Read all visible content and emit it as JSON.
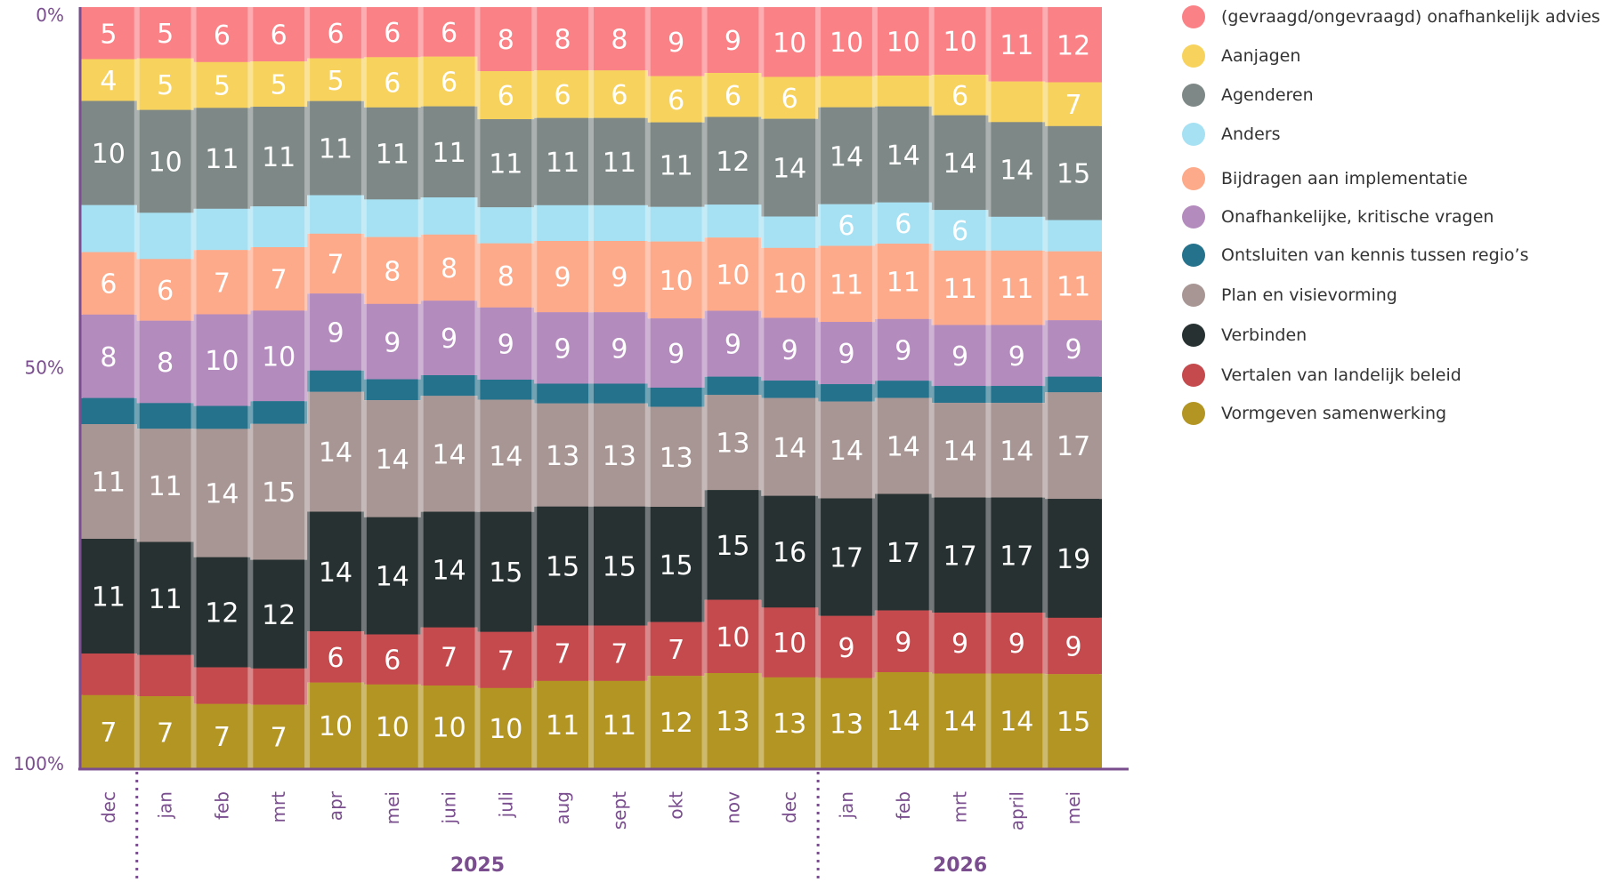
{
  "chart_data": {
    "type": "stacked-area",
    "orientation": "top-down-percentage",
    "y_ticks": [
      "0%",
      "50%",
      "100%"
    ],
    "x_labels": [
      "dec",
      "jan",
      "feb",
      "mrt",
      "apr",
      "mei",
      "juni",
      "juli",
      "aug",
      "sept",
      "okt",
      "nov",
      "dec",
      "jan",
      "feb",
      "mrt",
      "april",
      "mei"
    ],
    "year_labels": [
      {
        "label": "2025",
        "start_index": 1,
        "end_index": 12
      },
      {
        "label": "2026",
        "start_index": 13,
        "end_index": 17
      }
    ],
    "year_dividers_after_index": [
      0,
      12
    ],
    "series": [
      {
        "name": "(gevraagd/ongevraagd) onafhankelijk advies",
        "color": "#FA8287",
        "values": [
          5,
          5,
          6,
          6,
          6,
          6,
          6,
          8,
          8,
          8,
          9,
          9,
          10,
          10,
          10,
          10,
          11,
          12
        ],
        "labels": [
          "5",
          "5",
          "6",
          "6",
          "6",
          "6",
          "6",
          "8",
          "8",
          "8",
          "9",
          "9",
          "10",
          "10",
          "10",
          "10",
          "11",
          "12"
        ]
      },
      {
        "name": "Aanjagen",
        "color": "#F7D35E",
        "values": [
          4,
          5,
          5,
          5,
          5,
          6,
          6,
          6,
          6,
          6,
          6,
          6,
          6,
          4.5,
          4.5,
          6,
          6,
          7
        ],
        "labels": [
          "4",
          "5",
          "5",
          "5",
          "5",
          "6",
          "6",
          "6",
          "6",
          "6",
          "6",
          "6",
          "6",
          "",
          "",
          "6",
          "",
          "7"
        ]
      },
      {
        "name": "Agenderen",
        "color": "#7E8886",
        "values": [
          10,
          10,
          11,
          11,
          11,
          11,
          11,
          11,
          11,
          11,
          11,
          12,
          14,
          14,
          14,
          14,
          14,
          15
        ],
        "labels": [
          "10",
          "10",
          "11",
          "11",
          "11",
          "11",
          "11",
          "11",
          "11",
          "11",
          "11",
          "12",
          "14",
          "14",
          "14",
          "14",
          "14",
          "15"
        ]
      },
      {
        "name": "Anders",
        "color": "#A6E1F3",
        "values": [
          4.5,
          4.5,
          4.5,
          4.5,
          4.5,
          4.5,
          4.5,
          4.5,
          4.5,
          4.5,
          4.5,
          4.5,
          4.5,
          6,
          6,
          6,
          5,
          5
        ],
        "labels": [
          "",
          "",
          "",
          "",
          "",
          "",
          "",
          "",
          "",
          "",
          "",
          "",
          "",
          "6",
          "6",
          "6",
          "",
          ""
        ]
      },
      {
        "name": "Bijdragen aan implementatie",
        "color": "#FDAA8A",
        "values": [
          6,
          6,
          7,
          7,
          7,
          8,
          8,
          8,
          9,
          9,
          10,
          10,
          10,
          11,
          11,
          11,
          11,
          11
        ],
        "labels": [
          "6",
          "6",
          "7",
          "7",
          "7",
          "8",
          "8",
          "8",
          "9",
          "9",
          "10",
          "10",
          "10",
          "11",
          "11",
          "11",
          "11",
          "11"
        ]
      },
      {
        "name": "Onafhankelijke, kritische vragen",
        "color": "#B48BBD",
        "values": [
          8,
          8,
          10,
          10,
          9,
          9,
          9,
          9,
          9,
          9,
          9,
          9,
          9,
          9,
          9,
          9,
          9,
          9
        ],
        "labels": [
          "8",
          "8",
          "10",
          "10",
          "9",
          "9",
          "9",
          "9",
          "9",
          "9",
          "9",
          "9",
          "9",
          "9",
          "9",
          "9",
          "9",
          "9"
        ]
      },
      {
        "name": "Ontsluiten van kennis tussen regio’s",
        "color": "#25728C",
        "values": [
          2.5,
          2.5,
          2.5,
          2.5,
          2.5,
          2.5,
          2.5,
          2.5,
          2.5,
          2.5,
          2.5,
          2.5,
          2.5,
          2.5,
          2.5,
          2.5,
          2.5,
          2.5
        ],
        "labels": [
          "",
          "",
          "",
          "",
          "",
          "",
          "",
          "",
          "",
          "",
          "",
          "",
          "",
          "",
          "",
          "",
          "",
          ""
        ]
      },
      {
        "name": "Plan en visievorming",
        "color": "#A79694",
        "values": [
          11,
          11,
          14,
          15,
          14,
          14,
          14,
          14,
          13,
          13,
          13,
          13,
          14,
          14,
          14,
          14,
          14,
          17
        ],
        "labels": [
          "11",
          "11",
          "14",
          "15",
          "14",
          "14",
          "14",
          "14",
          "13",
          "13",
          "13",
          "13",
          "14",
          "14",
          "14",
          "14",
          "14",
          "17"
        ]
      },
      {
        "name": "Verbinden",
        "color": "#273132",
        "values": [
          11,
          11,
          12,
          12,
          14,
          14,
          14,
          15,
          15,
          15,
          15,
          15,
          16,
          17,
          17,
          17,
          17,
          19
        ],
        "labels": [
          "11",
          "11",
          "12",
          "12",
          "14",
          "14",
          "14",
          "15",
          "15",
          "15",
          "15",
          "15",
          "16",
          "17",
          "17",
          "17",
          "17",
          "19"
        ]
      },
      {
        "name": "Vertalen van landelijk beleid",
        "color": "#C44A4D",
        "values": [
          4,
          4,
          4,
          4,
          6,
          6,
          7,
          7,
          7,
          7,
          7,
          10,
          10,
          9,
          9,
          9,
          9,
          9
        ],
        "labels": [
          "",
          "",
          "",
          "",
          "6",
          "6",
          "7",
          "7",
          "7",
          "7",
          "7",
          "10",
          "10",
          "9",
          "9",
          "9",
          "9",
          "9"
        ]
      },
      {
        "name": "Vormgeven samenwerking",
        "color": "#B39523",
        "values": [
          7,
          7,
          7,
          7,
          10,
          10,
          10,
          10,
          11,
          11,
          12,
          13,
          13,
          13,
          14,
          14,
          14,
          15
        ],
        "labels": [
          "7",
          "7",
          "7",
          "7",
          "10",
          "10",
          "10",
          "10",
          "11",
          "11",
          "12",
          "13",
          "13",
          "13",
          "14",
          "14",
          "14",
          "15"
        ]
      }
    ]
  }
}
